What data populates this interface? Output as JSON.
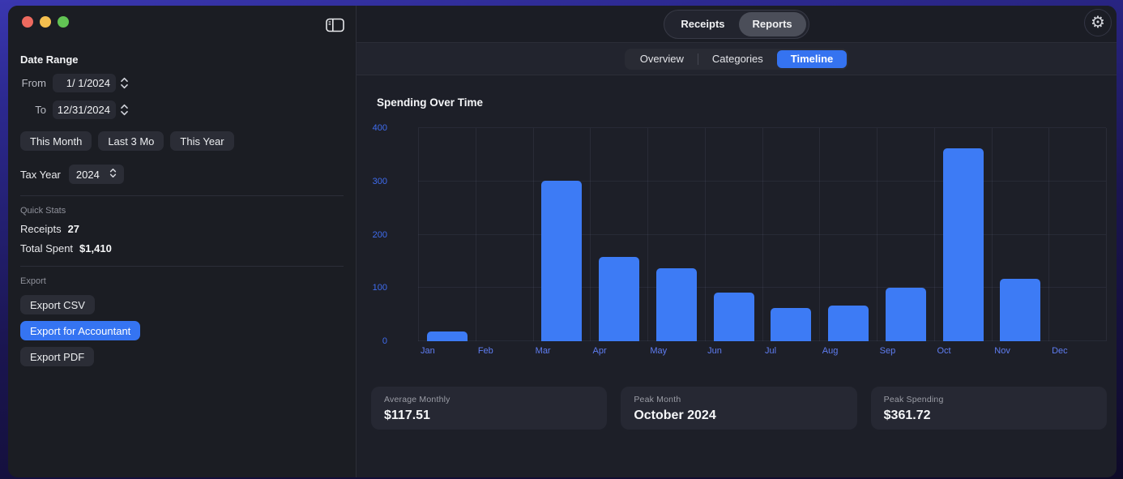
{
  "window": {
    "traffic_lights": {
      "close_color": "#ee6a5f",
      "minimize_color": "#f5bf4f",
      "zoom_color": "#62c454"
    }
  },
  "sidebar": {
    "date_range": {
      "title": "Date Range",
      "from_label": "From",
      "from_value": "1/ 1/2024",
      "to_label": "To",
      "to_value": "12/31/2024",
      "presets": [
        "This Month",
        "Last 3 Mo",
        "This Year"
      ],
      "tax_year_label": "Tax Year",
      "tax_year_value": "2024"
    },
    "quick_stats": {
      "title": "Quick Stats",
      "rows": [
        {
          "label": "Receipts",
          "value": "27"
        },
        {
          "label": "Total Spent",
          "value": "$1,410"
        }
      ]
    },
    "export": {
      "title": "Export",
      "buttons": [
        {
          "label": "Export CSV",
          "style": "default"
        },
        {
          "label": "Export for Accountant",
          "style": "primary"
        },
        {
          "label": "Export PDF",
          "style": "default"
        }
      ]
    }
  },
  "topbar": {
    "segments": [
      "Receipts",
      "Reports"
    ],
    "selected_segment": "Reports"
  },
  "tabs": {
    "items": [
      "Overview",
      "Categories",
      "Timeline"
    ],
    "selected": "Timeline"
  },
  "chart_data": {
    "type": "bar",
    "title": "Spending Over Time",
    "categories": [
      "Jan",
      "Feb",
      "Mar",
      "Apr",
      "May",
      "Jun",
      "Jul",
      "Aug",
      "Sep",
      "Oct",
      "Nov",
      "Dec"
    ],
    "values": [
      19,
      0,
      301,
      158,
      137,
      91,
      62,
      67,
      101,
      361.72,
      117,
      0
    ],
    "xlabel": "",
    "ylabel": "",
    "ylim": [
      0,
      400
    ],
    "yticks": [
      0,
      100,
      200,
      300,
      400
    ],
    "grid": true,
    "legend": "none",
    "bar_color": "#3d7bf5"
  },
  "summary_cards": [
    {
      "label": "Average Monthly",
      "value": "$117.51"
    },
    {
      "label": "Peak Month",
      "value": "October 2024"
    },
    {
      "label": "Peak Spending",
      "value": "$361.72"
    }
  ],
  "colors": {
    "accent_blue": "#3573f0",
    "bar_blue": "#3d7bf5",
    "y_axis_label": "#3f6cee",
    "x_axis_label": "#5f7df2",
    "window_bg": "#1d1f27",
    "sidebar_bg": "#1b1d23",
    "card_bg": "#262833"
  },
  "icons": {
    "gear": "⚙"
  }
}
